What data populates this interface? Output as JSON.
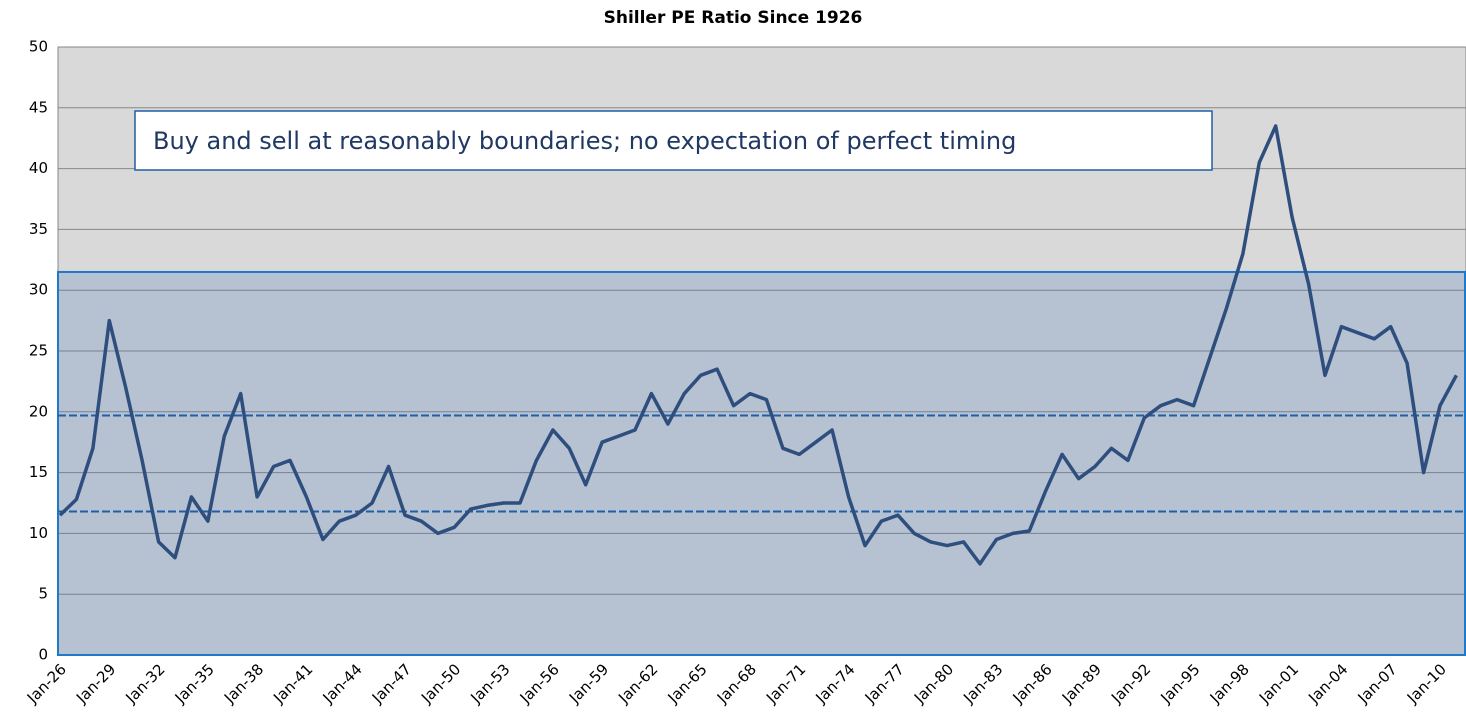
{
  "chart_data": {
    "type": "line",
    "title": "Shiller PE Ratio Since 1926",
    "annotation": "Buy and sell at reasonably boundaries; no expectation of perfect timing",
    "categories": [
      "Jan-26",
      null,
      null,
      "Jan-29",
      null,
      null,
      "Jan-32",
      null,
      null,
      "Jan-35",
      null,
      null,
      "Jan-38",
      null,
      null,
      "Jan-41",
      null,
      null,
      "Jan-44",
      null,
      null,
      "Jan-47",
      null,
      null,
      "Jan-50",
      null,
      null,
      "Jan-53",
      null,
      null,
      "Jan-56",
      null,
      null,
      "Jan-59",
      null,
      null,
      "Jan-62",
      null,
      null,
      "Jan-65",
      null,
      null,
      "Jan-68",
      null,
      null,
      "Jan-71",
      null,
      null,
      "Jan-74",
      null,
      null,
      "Jan-77",
      null,
      null,
      "Jan-80",
      null,
      null,
      "Jan-83",
      null,
      null,
      "Jan-86",
      null,
      null,
      "Jan-89",
      null,
      null,
      "Jan-92",
      null,
      null,
      "Jan-95",
      null,
      null,
      "Jan-98",
      null,
      null,
      "Jan-01",
      null,
      null,
      "Jan-04",
      null,
      null,
      "Jan-07",
      null,
      null,
      "Jan-10",
      null
    ],
    "series": [
      {
        "color": "#2e4e7e",
        "values": [
          11.5,
          12.8,
          17,
          27.5,
          22,
          16,
          9.3,
          8,
          13,
          11,
          18,
          21.5,
          13,
          15.5,
          16,
          13,
          9.5,
          11,
          11.5,
          12.5,
          15.5,
          11.5,
          11,
          10,
          10.5,
          12,
          12.3,
          12.5,
          12.5,
          16,
          18.5,
          17,
          14,
          17.5,
          18,
          18.5,
          21.5,
          19,
          21.5,
          23,
          23.5,
          20.5,
          21.5,
          21,
          17,
          16.5,
          17.5,
          18.5,
          13,
          9,
          11,
          11.5,
          10,
          9.3,
          9,
          9.3,
          7.5,
          9.5,
          10,
          10.2,
          13.5,
          16.5,
          14.5,
          15.5,
          17,
          16,
          19.5,
          20.5,
          21,
          20.5,
          24.5,
          28.5,
          33,
          40.5,
          43.5,
          36,
          30.5,
          23,
          27,
          26.5,
          26,
          27,
          24,
          15,
          20.5,
          23
        ]
      }
    ],
    "shaded_range": [
      0,
      31.5
    ],
    "reference_lines": [
      19.7,
      11.8
    ],
    "ylim": [
      0,
      50
    ],
    "yticks": [
      0,
      5,
      10,
      15,
      20,
      25,
      30,
      35,
      40,
      45,
      50
    ],
    "grid": true
  }
}
